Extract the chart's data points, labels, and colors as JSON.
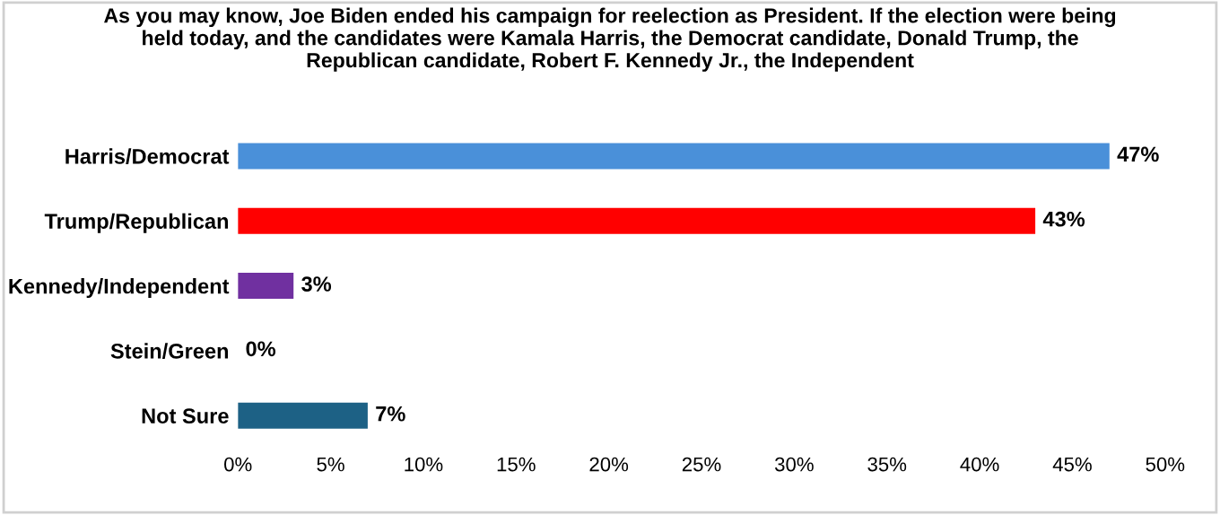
{
  "chart_data": {
    "type": "bar",
    "orientation": "horizontal",
    "title": "As you may know, Joe Biden ended his campaign for reelection as President. If the election were being\nheld today, and the candidates were Kamala Harris, the Democrat candidate, Donald Trump, the\nRepublican candidate, Robert F. Kennedy Jr., the Independent",
    "categories": [
      "Harris/Democrat",
      "Trump/Republican",
      "Kennedy/Independent",
      "Stein/Green",
      "Not Sure"
    ],
    "values": [
      47,
      43,
      3,
      0,
      7
    ],
    "colors": [
      "#4a90d9",
      "#ff0000",
      "#7030a0",
      "#7f7f7f",
      "#1d6185"
    ],
    "value_labels": [
      "47%",
      "43%",
      "3%",
      "0%",
      "7%"
    ],
    "xlim": [
      0,
      50
    ],
    "xticks": [
      {
        "value": 0,
        "label": "0%"
      },
      {
        "value": 5,
        "label": "5%"
      },
      {
        "value": 10,
        "label": "10%"
      },
      {
        "value": 15,
        "label": "15%"
      },
      {
        "value": 20,
        "label": "20%"
      },
      {
        "value": 25,
        "label": "25%"
      },
      {
        "value": 30,
        "label": "30%"
      },
      {
        "value": 35,
        "label": "35%"
      },
      {
        "value": 40,
        "label": "40%"
      },
      {
        "value": 45,
        "label": "45%"
      },
      {
        "value": 50,
        "label": "50%"
      }
    ],
    "grid": false
  }
}
